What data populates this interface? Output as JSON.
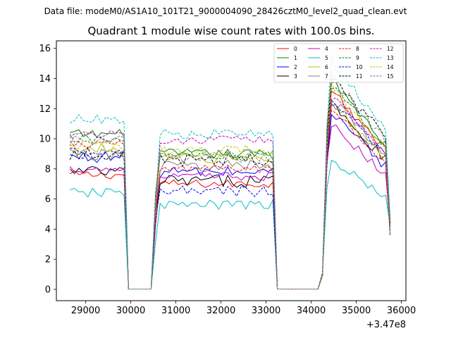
{
  "chart_data": {
    "type": "line",
    "suptitle": "Data file: modeM0/AS1A10_101T21_9000004090_28426cztM0_level2_quad_clean.evt",
    "title": "Quadrant 1 module wise count rates with 100.0s bins.",
    "xlabel": "",
    "ylabel": "",
    "x_offset_label": "+3.47e8",
    "x_offset": 347000000,
    "xlim": [
      28350,
      36100
    ],
    "ylim": [
      -0.75,
      16.5
    ],
    "x_ticks": [
      29000,
      30000,
      31000,
      32000,
      33000,
      34000,
      35000,
      36000
    ],
    "x_tick_labels": [
      "29000",
      "30000",
      "31000",
      "32000",
      "33000",
      "34000",
      "35000",
      "36000"
    ],
    "y_ticks": [
      0,
      2,
      4,
      6,
      8,
      10,
      12,
      14,
      16
    ],
    "y_tick_labels": [
      "0",
      "2",
      "4",
      "6",
      "8",
      "10",
      "12",
      "14",
      "16"
    ],
    "bin_seconds": 100,
    "segments": [
      {
        "start": 28650,
        "end": 29850
      },
      {
        "start": 30550,
        "end": 33150
      },
      {
        "start": 34350,
        "end": 35650
      }
    ],
    "gaps": [
      {
        "start": 29950,
        "end": 30450
      },
      {
        "start": 33250,
        "end": 34150
      }
    ],
    "legend_position": "top-right",
    "series": [
      {
        "name": "0",
        "color": "#ff0000",
        "dash": "solid",
        "levels": [
          7.6,
          7.0,
          11.5
        ]
      },
      {
        "name": "1",
        "color": "#008000",
        "dash": "solid",
        "levels": [
          10.3,
          9.0,
          12.0
        ]
      },
      {
        "name": "2",
        "color": "#0000ff",
        "dash": "solid",
        "levels": [
          8.8,
          7.8,
          10.2
        ]
      },
      {
        "name": "3",
        "color": "#000000",
        "dash": "solid",
        "levels": [
          7.8,
          7.2,
          10.8
        ]
      },
      {
        "name": "4",
        "color": "#c000c0",
        "dash": "solid",
        "levels": [
          8.0,
          7.5,
          9.5
        ]
      },
      {
        "name": "5",
        "color": "#00bfbf",
        "dash": "solid",
        "levels": [
          6.4,
          5.6,
          7.6
        ]
      },
      {
        "name": "6",
        "color": "#bfbf00",
        "dash": "solid",
        "levels": [
          9.3,
          8.7,
          10.8
        ]
      },
      {
        "name": "7",
        "color": "#808080",
        "dash": "solid",
        "levels": [
          9.0,
          8.2,
          11.0
        ]
      },
      {
        "name": "8",
        "color": "#ff0000",
        "dash": "dashed",
        "levels": [
          9.6,
          8.0,
          10.5
        ]
      },
      {
        "name": "9",
        "color": "#008000",
        "dash": "dashed",
        "levels": [
          10.0,
          8.8,
          11.8
        ]
      },
      {
        "name": "10",
        "color": "#0000ff",
        "dash": "dashed",
        "levels": [
          9.0,
          6.5,
          11.2
        ]
      },
      {
        "name": "11",
        "color": "#000000",
        "dash": "dashed",
        "levels": [
          9.0,
          8.6,
          12.5
        ]
      },
      {
        "name": "12",
        "color": "#c000c0",
        "dash": "dashed",
        "levels": [
          10.3,
          9.9,
          11.2
        ]
      },
      {
        "name": "13",
        "color": "#00bfbf",
        "dash": "dashed",
        "levels": [
          11.3,
          10.3,
          13.2
        ]
      },
      {
        "name": "14",
        "color": "#bfbf00",
        "dash": "dashed",
        "levels": [
          9.5,
          9.2,
          11.6
        ]
      },
      {
        "name": "15",
        "color": "#808080",
        "dash": "dashed",
        "levels": [
          9.8,
          8.8,
          12.2
        ]
      }
    ]
  }
}
